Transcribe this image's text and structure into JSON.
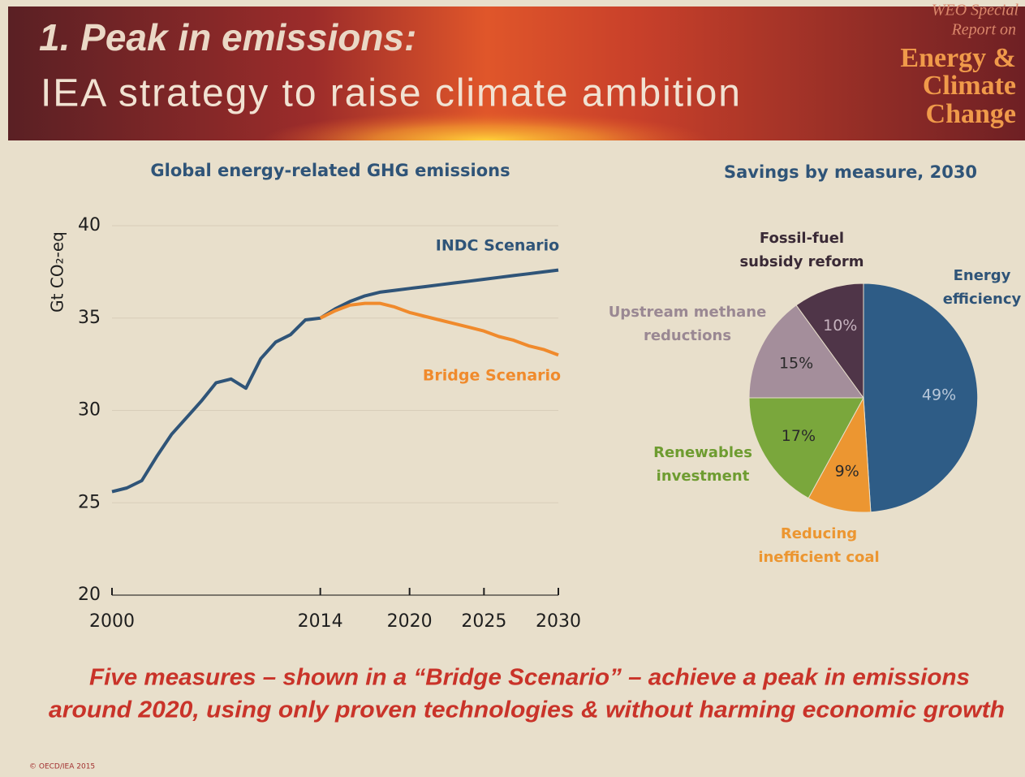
{
  "header": {
    "title": "1. Peak in emissions:",
    "subtitle": "IEA strategy to raise climate ambition",
    "badge": [
      "WEO Special",
      "Report on",
      "Energy &",
      "Climate",
      "Change"
    ]
  },
  "chart_data": [
    {
      "type": "line",
      "title": "Global energy-related GHG emissions",
      "y_label": "Gt CO₂-eq",
      "x": [
        2000,
        2001,
        2002,
        2003,
        2004,
        2005,
        2006,
        2007,
        2008,
        2009,
        2010,
        2011,
        2012,
        2013,
        2014,
        2015,
        2016,
        2017,
        2018,
        2019,
        2020,
        2021,
        2022,
        2023,
        2024,
        2025,
        2026,
        2027,
        2028,
        2029,
        2030
      ],
      "series": [
        {
          "name": "INDC Scenario",
          "color": "#2f5478",
          "values": [
            25.6,
            25.8,
            26.2,
            27.5,
            28.7,
            29.6,
            30.5,
            31.5,
            31.7,
            31.2,
            32.8,
            33.7,
            34.1,
            34.9,
            35.0,
            35.5,
            35.9,
            36.2,
            36.4,
            36.5,
            36.6,
            36.7,
            36.8,
            36.9,
            37.0,
            37.1,
            37.2,
            37.3,
            37.4,
            37.5,
            37.6
          ]
        },
        {
          "name": "Bridge Scenario",
          "color": "#f08a2c",
          "values": [
            null,
            null,
            null,
            null,
            null,
            null,
            null,
            null,
            null,
            null,
            null,
            null,
            null,
            null,
            35.0,
            35.4,
            35.7,
            35.8,
            35.8,
            35.6,
            35.3,
            35.1,
            34.9,
            34.7,
            34.5,
            34.3,
            34.0,
            33.8,
            33.5,
            33.3,
            33.0
          ]
        }
      ],
      "xlim": [
        2000,
        2030
      ],
      "xticks": [
        2000,
        2014,
        2020,
        2025,
        2030
      ],
      "ylim": [
        20,
        40
      ],
      "yticks": [
        20,
        25,
        30,
        35,
        40
      ],
      "grid": true
    },
    {
      "type": "pie",
      "title": "Savings by measure, 2030",
      "categories": [
        "Energy efficiency",
        "Reducing inefficient coal",
        "Renewables investment",
        "Upstream methane reductions",
        "Fossil-fuel subsidy reform"
      ],
      "values": [
        49,
        9,
        17,
        15,
        10
      ],
      "value_labels": [
        "49%",
        "9%",
        "17%",
        "15%",
        "10%"
      ],
      "colors": [
        "#2e5c86",
        "#ec9631",
        "#7aa73c",
        "#a48e9b",
        "#4f3548"
      ]
    }
  ],
  "footer": {
    "caption": [
      "Five measures – shown in a “Bridge Scenario” – achieve a peak in emissions",
      "around 2020, using only proven technologies & without harming economic growth"
    ],
    "copyright": "© OECD/IEA 2015"
  }
}
